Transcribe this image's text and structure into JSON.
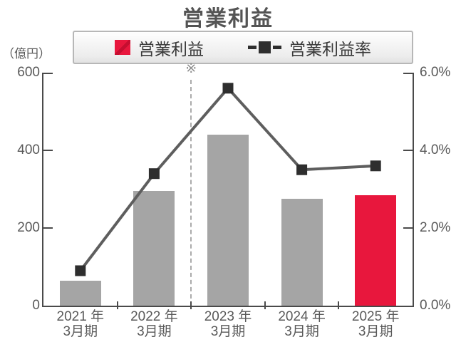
{
  "title": "営業利益",
  "legend": {
    "bar_label": "営業利益",
    "line_label": "営業利益率"
  },
  "annotation": {
    "symbol": "※"
  },
  "colors": {
    "bar_gray": "#a5a5a5",
    "bar_red": "#e8173d",
    "line": "#5e5e5e",
    "marker": "#2e2e2e",
    "axis": "#4a4a4a",
    "text": "#595959",
    "dashed": "#ababab",
    "legend_border": "#b7b7b7"
  },
  "chart_data": {
    "type": "bar",
    "subtype": "combo-bar-line-dual-axis",
    "title": "営業利益",
    "categories": [
      "2021年3月期",
      "2022年3月期",
      "2023年3月期",
      "2024年3月期",
      "2025年3月期"
    ],
    "category_display_lines": [
      [
        "2021 年",
        "3月期"
      ],
      [
        "2022 年",
        "3月期"
      ],
      [
        "2023 年",
        "3月期"
      ],
      [
        "2024 年",
        "3月期"
      ],
      [
        "2025 年",
        "3月期"
      ]
    ],
    "series": [
      {
        "name": "営業利益",
        "type": "bar",
        "unit": "億円",
        "values": [
          65,
          295,
          440,
          275,
          285
        ],
        "bar_colors": [
          "#a5a5a5",
          "#a5a5a5",
          "#a5a5a5",
          "#a5a5a5",
          "#e8173d"
        ]
      },
      {
        "name": "営業利益率",
        "type": "line",
        "unit": "%",
        "values": [
          0.9,
          3.4,
          5.6,
          3.5,
          3.6
        ]
      }
    ],
    "left_axis": {
      "unit_label": "（億円）",
      "min": 0,
      "max": 600,
      "tick_labels": [
        "600",
        "400",
        "200",
        "0"
      ]
    },
    "right_axis": {
      "min": 0,
      "max": 6,
      "tick_labels": [
        "6.0%",
        "4.0%",
        "2.0%",
        "0.0%"
      ]
    },
    "grid": false,
    "legend_position": "top",
    "separator_after_index": 1,
    "separator_annotation": "※"
  }
}
